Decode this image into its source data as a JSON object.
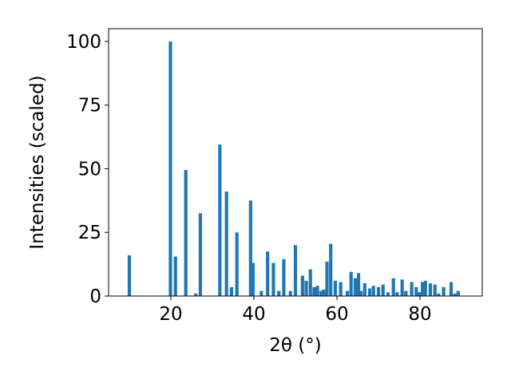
{
  "chart_data": {
    "type": "bar",
    "xlabel": "2θ (°)",
    "ylabel": "Intensities (scaled)",
    "xlim": [
      5,
      95
    ],
    "ylim": [
      0,
      105
    ],
    "x_ticks": [
      20,
      40,
      60,
      80
    ],
    "y_ticks": [
      0,
      25,
      50,
      75,
      100
    ],
    "bar_color": "#1f77b4",
    "bar_width": 0.8,
    "grid": false,
    "x": [
      10.0,
      19.9,
      21.1,
      23.6,
      26.0,
      27.1,
      31.8,
      33.4,
      34.6,
      35.9,
      39.2,
      39.8,
      41.8,
      43.3,
      44.7,
      46.0,
      47.2,
      48.8,
      50.0,
      51.7,
      52.6,
      53.6,
      54.5,
      55.3,
      56.2,
      56.8,
      57.6,
      58.5,
      59.6,
      60.9,
      62.5,
      63.4,
      64.4,
      65.2,
      65.8,
      66.7,
      67.9,
      68.8,
      70.0,
      71.1,
      72.3,
      73.6,
      74.5,
      75.7,
      76.6,
      78.0,
      79.1,
      79.8,
      80.6,
      81.3,
      82.5,
      83.6,
      84.5,
      85.7,
      87.5,
      88.4,
      89.2
    ],
    "values": [
      16,
      100,
      15.5,
      49.5,
      1,
      32.5,
      59.5,
      41,
      3.5,
      25,
      37.5,
      13,
      2,
      17.5,
      13,
      2,
      14.5,
      2,
      20,
      8,
      6,
      10.5,
      3.5,
      4,
      2,
      2.5,
      13.5,
      20.5,
      6,
      5.5,
      2,
      9.5,
      7,
      9,
      2,
      5,
      3,
      4,
      3.5,
      4.5,
      1.5,
      7,
      1.5,
      6.5,
      2,
      5.5,
      3.5,
      1.5,
      5.5,
      6,
      5,
      4.5,
      1,
      3.5,
      5.5,
      1,
      2
    ]
  }
}
